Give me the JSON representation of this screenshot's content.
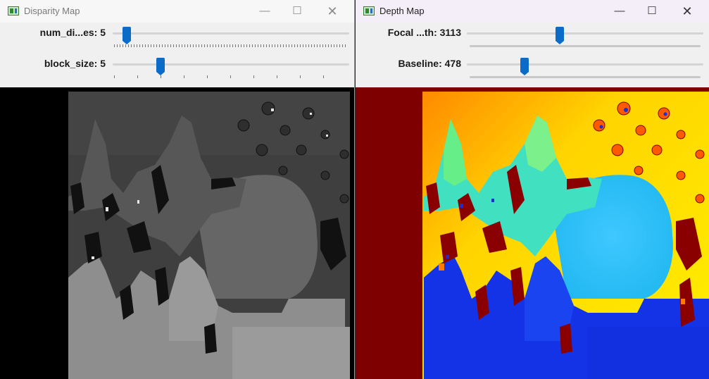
{
  "windows": {
    "disparity": {
      "title": "Disparity Map",
      "controls": {
        "minimize": "—",
        "maximize": "☐",
        "close": "✕"
      },
      "trackbars": [
        {
          "label": "num_di...es: 5",
          "value": 5,
          "position": 0.06
        },
        {
          "label": "block_size: 5",
          "value": 5,
          "position": 0.2
        }
      ]
    },
    "depth": {
      "title": "Depth Map",
      "controls": {
        "minimize": "—",
        "maximize": "☐",
        "close": "✕"
      },
      "trackbars": [
        {
          "label": "Focal ...th: 3113",
          "value": 3113,
          "position": 0.4
        },
        {
          "label": "Baseline: 478",
          "value": 478,
          "position": 0.25
        }
      ]
    }
  },
  "colors": {
    "accent": "#0a6bc9",
    "depth_background": "#7f0000",
    "disparity_background": "#000000"
  }
}
